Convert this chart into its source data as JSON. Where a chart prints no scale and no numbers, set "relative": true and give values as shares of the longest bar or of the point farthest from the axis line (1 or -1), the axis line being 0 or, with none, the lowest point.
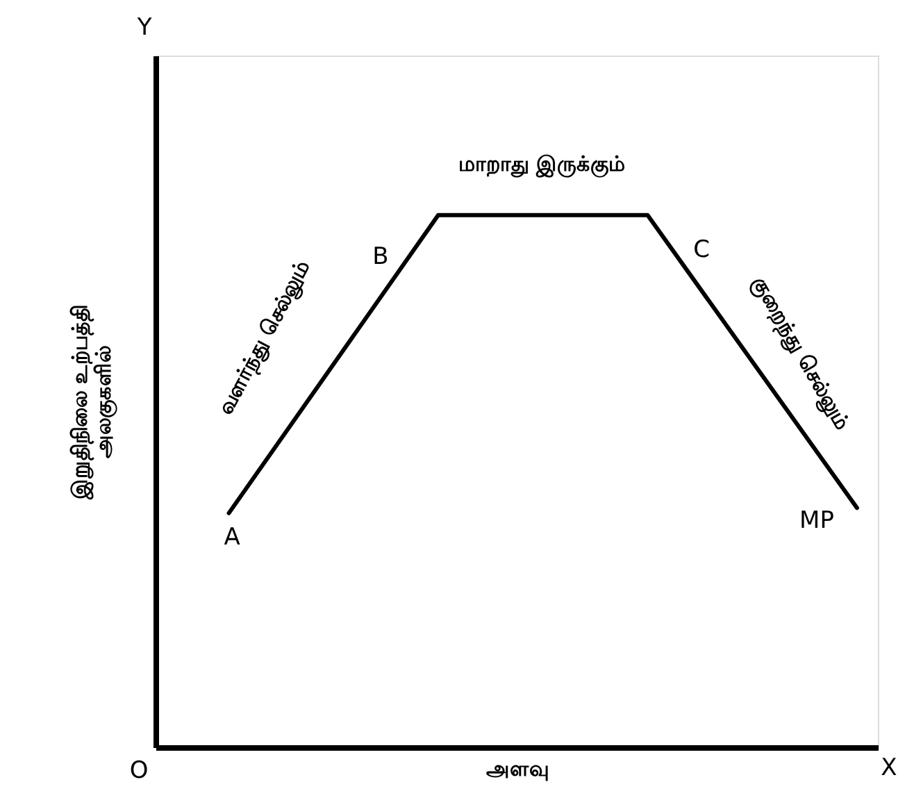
{
  "chart_data": {
    "type": "line",
    "relative": true,
    "categories": [
      null,
      null,
      null,
      null
    ],
    "series": [
      {
        "color": "#000000",
        "values": [
          0.44,
          1,
          1,
          0.45
        ]
      }
    ],
    "xlabel": "அளவு",
    "ylabel": "இறுதிநிலை உற்பத்தி\nஅலகுகளில்",
    "annotations": [
      "Y",
      "O",
      "X",
      "A",
      "B",
      "C",
      "MP",
      "வளர்ந்து செல்லும்",
      "மாறாது இருக்கும்",
      "குறைந்து செல்லும்"
    ],
    "grid": false,
    "marker": "none",
    "line_style": "solid",
    "tick_labels": false
  }
}
